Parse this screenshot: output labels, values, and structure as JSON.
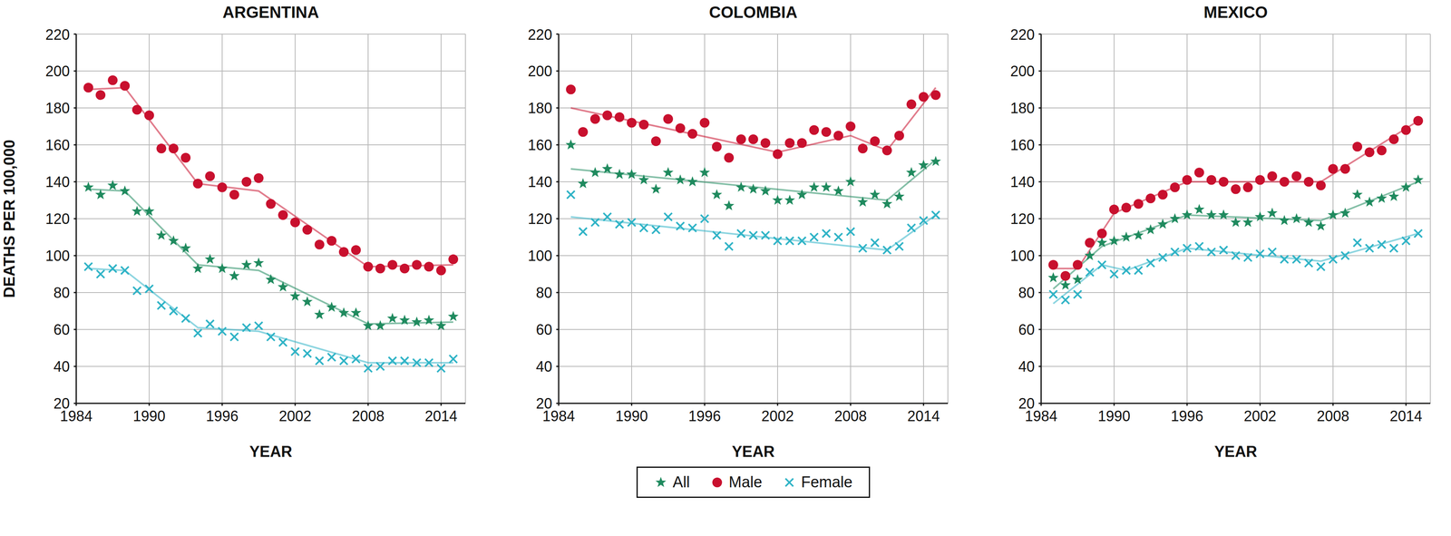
{
  "chart_data": [
    {
      "type": "scatter",
      "title": "ARGENTINA",
      "x_label": "YEAR",
      "y_label": "DEATHS PER 100,000",
      "x": [
        1985,
        1986,
        1987,
        1988,
        1989,
        1990,
        1991,
        1992,
        1993,
        1994,
        1995,
        1996,
        1997,
        1998,
        1999,
        2000,
        2001,
        2002,
        2003,
        2004,
        2005,
        2006,
        2007,
        2008,
        2009,
        2010,
        2011,
        2012,
        2013,
        2014,
        2015
      ],
      "xlim": [
        1984,
        2016
      ],
      "xticks": [
        1984,
        1990,
        1996,
        2002,
        2008,
        2014
      ],
      "ylim": [
        20,
        220
      ],
      "yticks": [
        20,
        40,
        60,
        80,
        100,
        120,
        140,
        160,
        180,
        200,
        220
      ],
      "grid": true,
      "series": [
        {
          "name": "All",
          "color": "#1f8a5e",
          "marker": "star",
          "values": [
            137,
            133,
            138,
            135,
            124,
            124,
            111,
            108,
            104,
            93,
            98,
            93,
            89,
            95,
            96,
            87,
            83,
            78,
            75,
            68,
            72,
            69,
            69,
            62,
            62,
            66,
            65,
            64,
            65,
            62,
            67
          ],
          "trend": [
            136,
            null,
            null,
            135,
            null,
            null,
            null,
            null,
            null,
            95,
            null,
            null,
            null,
            null,
            92,
            null,
            null,
            null,
            null,
            null,
            null,
            null,
            null,
            63,
            null,
            null,
            null,
            null,
            null,
            null,
            64
          ]
        },
        {
          "name": "Male",
          "color": "#c8102e",
          "marker": "circle",
          "values": [
            191,
            187,
            195,
            192,
            179,
            176,
            158,
            158,
            153,
            139,
            143,
            137,
            133,
            140,
            142,
            128,
            122,
            118,
            114,
            106,
            108,
            102,
            103,
            94,
            93,
            95,
            93,
            95,
            94,
            92,
            98
          ],
          "trend": [
            190,
            null,
            null,
            191,
            null,
            null,
            null,
            null,
            null,
            139,
            null,
            null,
            null,
            null,
            135,
            null,
            null,
            null,
            null,
            null,
            null,
            null,
            null,
            94,
            null,
            null,
            null,
            null,
            null,
            null,
            95
          ]
        },
        {
          "name": "Female",
          "color": "#2fb3c6",
          "marker": "x",
          "values": [
            94,
            90,
            93,
            92,
            81,
            82,
            73,
            70,
            66,
            58,
            63,
            59,
            56,
            61,
            62,
            56,
            53,
            48,
            47,
            43,
            45,
            43,
            44,
            39,
            40,
            43,
            43,
            42,
            42,
            39,
            44
          ],
          "trend": [
            93,
            null,
            null,
            92,
            null,
            null,
            null,
            null,
            null,
            61,
            null,
            null,
            null,
            null,
            59,
            null,
            null,
            null,
            null,
            null,
            null,
            null,
            null,
            42,
            null,
            null,
            null,
            null,
            null,
            null,
            42
          ]
        }
      ]
    },
    {
      "type": "scatter",
      "title": "COLOMBIA",
      "x_label": "YEAR",
      "x": [
        1985,
        1986,
        1987,
        1988,
        1989,
        1990,
        1991,
        1992,
        1993,
        1994,
        1995,
        1996,
        1997,
        1998,
        1999,
        2000,
        2001,
        2002,
        2003,
        2004,
        2005,
        2006,
        2007,
        2008,
        2009,
        2010,
        2011,
        2012,
        2013,
        2014,
        2015
      ],
      "xlim": [
        1984,
        2016
      ],
      "xticks": [
        1984,
        1990,
        1996,
        2002,
        2008,
        2014
      ],
      "ylim": [
        20,
        220
      ],
      "yticks": [
        20,
        40,
        60,
        80,
        100,
        120,
        140,
        160,
        180,
        200,
        220
      ],
      "grid": true,
      "series": [
        {
          "name": "All",
          "color": "#1f8a5e",
          "marker": "star",
          "values": [
            160,
            139,
            145,
            147,
            144,
            144,
            141,
            136,
            145,
            141,
            140,
            145,
            133,
            127,
            137,
            136,
            135,
            130,
            130,
            133,
            137,
            137,
            135,
            140,
            129,
            133,
            128,
            132,
            145,
            149,
            151
          ],
          "trend": [
            147,
            null,
            null,
            null,
            null,
            null,
            null,
            null,
            null,
            null,
            null,
            null,
            null,
            null,
            null,
            null,
            null,
            null,
            null,
            null,
            null,
            null,
            null,
            null,
            null,
            null,
            130,
            null,
            null,
            null,
            152
          ]
        },
        {
          "name": "Male",
          "color": "#c8102e",
          "marker": "circle",
          "values": [
            190,
            167,
            174,
            176,
            175,
            172,
            171,
            162,
            174,
            169,
            166,
            172,
            159,
            153,
            163,
            163,
            161,
            155,
            161,
            161,
            168,
            167,
            165,
            170,
            158,
            162,
            157,
            165,
            182,
            186,
            187
          ],
          "trend": [
            180,
            null,
            null,
            null,
            null,
            null,
            null,
            null,
            null,
            null,
            null,
            null,
            null,
            null,
            null,
            null,
            null,
            156,
            null,
            null,
            null,
            null,
            null,
            165,
            null,
            null,
            157,
            null,
            null,
            null,
            191
          ]
        },
        {
          "name": "Female",
          "color": "#2fb3c6",
          "marker": "x",
          "values": [
            133,
            113,
            118,
            121,
            117,
            118,
            115,
            114,
            121,
            116,
            115,
            120,
            111,
            105,
            112,
            111,
            111,
            108,
            108,
            108,
            110,
            112,
            110,
            113,
            104,
            107,
            103,
            105,
            115,
            119,
            122
          ],
          "trend": [
            121,
            null,
            null,
            null,
            null,
            null,
            null,
            null,
            null,
            null,
            null,
            null,
            null,
            null,
            null,
            null,
            null,
            null,
            null,
            null,
            null,
            null,
            null,
            null,
            null,
            null,
            103,
            null,
            null,
            null,
            122
          ]
        }
      ]
    },
    {
      "type": "scatter",
      "title": "MEXICO",
      "x_label": "YEAR",
      "x": [
        1985,
        1986,
        1987,
        1988,
        1989,
        1990,
        1991,
        1992,
        1993,
        1994,
        1995,
        1996,
        1997,
        1998,
        1999,
        2000,
        2001,
        2002,
        2003,
        2004,
        2005,
        2006,
        2007,
        2008,
        2009,
        2010,
        2011,
        2012,
        2013,
        2014,
        2015
      ],
      "xlim": [
        1984,
        2016
      ],
      "xticks": [
        1984,
        1990,
        1996,
        2002,
        2008,
        2014
      ],
      "ylim": [
        20,
        220
      ],
      "yticks": [
        20,
        40,
        60,
        80,
        100,
        120,
        140,
        160,
        180,
        200,
        220
      ],
      "grid": true,
      "series": [
        {
          "name": "All",
          "color": "#1f8a5e",
          "marker": "star",
          "values": [
            88,
            84,
            87,
            100,
            107,
            108,
            110,
            111,
            114,
            117,
            120,
            122,
            125,
            122,
            122,
            118,
            118,
            121,
            123,
            119,
            120,
            118,
            116,
            122,
            123,
            133,
            129,
            131,
            132,
            137,
            141
          ],
          "trend": [
            82,
            null,
            null,
            null,
            105,
            null,
            null,
            null,
            null,
            null,
            null,
            122,
            null,
            null,
            null,
            null,
            null,
            null,
            null,
            null,
            null,
            null,
            119,
            null,
            null,
            null,
            null,
            null,
            null,
            null,
            140
          ]
        },
        {
          "name": "Male",
          "color": "#c8102e",
          "marker": "circle",
          "values": [
            95,
            89,
            95,
            107,
            112,
            125,
            126,
            128,
            131,
            133,
            137,
            141,
            145,
            141,
            140,
            136,
            137,
            141,
            143,
            140,
            143,
            140,
            138,
            147,
            147,
            159,
            156,
            157,
            163,
            168,
            173
          ],
          "trend": [
            93,
            null,
            93,
            null,
            null,
            123,
            null,
            null,
            null,
            null,
            null,
            140,
            null,
            null,
            null,
            null,
            null,
            null,
            null,
            null,
            null,
            null,
            140,
            null,
            null,
            null,
            null,
            null,
            null,
            null,
            173
          ]
        },
        {
          "name": "Female",
          "color": "#2fb3c6",
          "marker": "x",
          "values": [
            79,
            76,
            79,
            91,
            95,
            90,
            92,
            92,
            96,
            99,
            102,
            104,
            105,
            102,
            103,
            100,
            99,
            101,
            102,
            98,
            98,
            96,
            94,
            98,
            100,
            107,
            104,
            106,
            104,
            108,
            112
          ],
          "trend": [
            74,
            null,
            null,
            null,
            95,
            null,
            92,
            null,
            null,
            null,
            null,
            104,
            null,
            null,
            null,
            null,
            null,
            null,
            null,
            null,
            null,
            null,
            97,
            null,
            null,
            null,
            null,
            null,
            null,
            null,
            112
          ]
        }
      ]
    }
  ]
}
